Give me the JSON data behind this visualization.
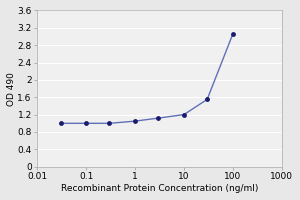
{
  "x": [
    0.03,
    0.1,
    0.3,
    1.0,
    3.0,
    10.0,
    30.0,
    100.0
  ],
  "y": [
    1.0,
    1.0,
    1.0,
    1.05,
    1.12,
    1.2,
    1.55,
    3.05
  ],
  "line_color": "#6070b8",
  "marker_color": "#1a1a6e",
  "marker_size": 3.5,
  "xlabel": "Recombinant Protein Concentration (ng/ml)",
  "ylabel": "OD 490",
  "xlim": [
    0.01,
    1000
  ],
  "ylim": [
    0,
    3.6
  ],
  "yticks": [
    0,
    0.4,
    0.8,
    1.2,
    1.6,
    2.0,
    2.4,
    2.8,
    3.2,
    3.6
  ],
  "ytick_labels": [
    "0",
    "0.4",
    "0.8",
    "1.2",
    "1.6",
    "2",
    "2.4",
    "2.8",
    "3.2",
    "3.6"
  ],
  "xtick_labels": [
    "0.01",
    "0.1",
    "1",
    "10",
    "100",
    "1000"
  ],
  "xtick_vals": [
    0.01,
    0.1,
    1,
    10,
    100,
    1000
  ],
  "plot_bg_color": "#f0f0f0",
  "fig_bg_color": "#e8e8e8",
  "grid_color": "#ffffff",
  "font_family": "sans-serif",
  "tick_font_size": 6.5,
  "label_font_size": 6.5
}
